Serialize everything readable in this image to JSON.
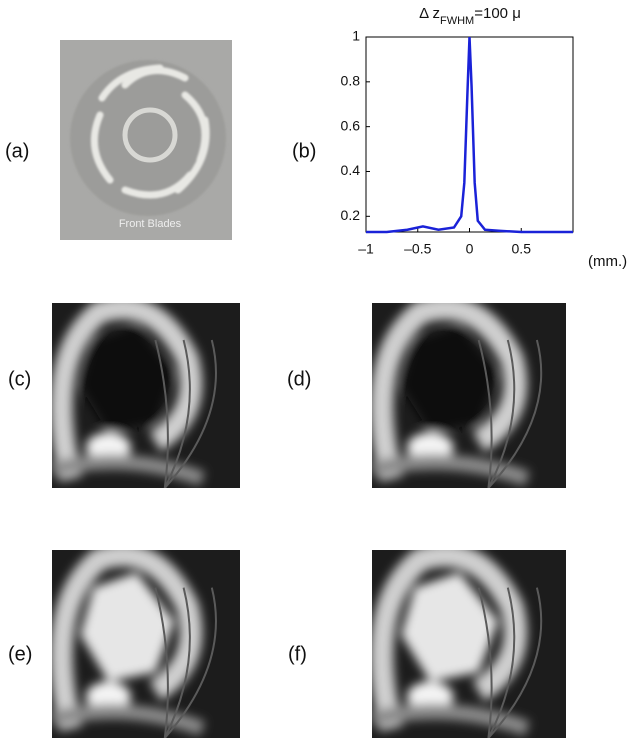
{
  "panels": [
    {
      "label": "(a)"
    },
    {
      "label": "(b)"
    },
    {
      "label": "(c)"
    },
    {
      "label": "(d)"
    },
    {
      "label": "(e)"
    },
    {
      "label": "(f)"
    }
  ],
  "photo_caption": "Front  Blades",
  "chart_data": {
    "type": "line",
    "title_parts": [
      "Δ z",
      "FWHM",
      "=100 μ"
    ],
    "xlabel": "(mm.)",
    "x": [
      -1,
      -0.8,
      -0.6,
      -0.45,
      -0.3,
      -0.15,
      -0.08,
      -0.05,
      -0.02,
      0,
      0.02,
      0.05,
      0.08,
      0.15,
      0.3,
      0.5,
      0.7,
      1
    ],
    "values": [
      0.13,
      0.13,
      0.14,
      0.155,
      0.14,
      0.15,
      0.2,
      0.35,
      0.75,
      1,
      0.78,
      0.35,
      0.18,
      0.14,
      0.135,
      0.13,
      0.13,
      0.13
    ],
    "color": "#1a22d8",
    "xlim": [
      -1,
      1
    ],
    "ylim": [
      0.13,
      1
    ],
    "xticks": [
      {
        "value": -1,
        "label": "–1"
      },
      {
        "value": -0.5,
        "label": "–0.5"
      },
      0,
      0.5
    ],
    "yticks": [
      0.2,
      0.4,
      0.6,
      0.8,
      1
    ]
  }
}
